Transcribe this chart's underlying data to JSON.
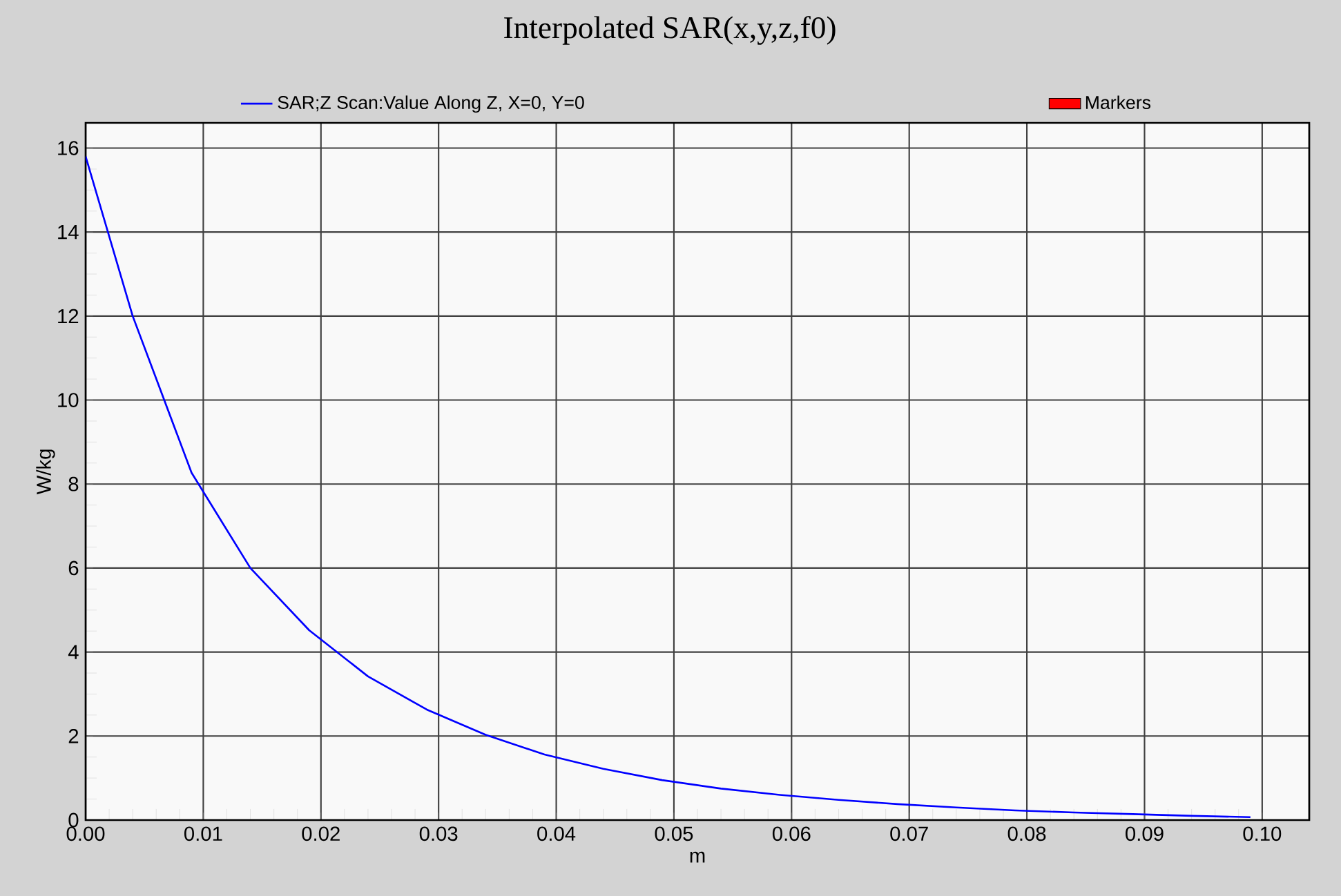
{
  "chart_data": {
    "type": "line",
    "title": "Interpolated SAR(x,y,z,f0)",
    "xlabel": "m",
    "ylabel": "W/kg",
    "xlim": [
      0,
      0.104
    ],
    "ylim": [
      0,
      16.6
    ],
    "xticks": [
      {
        "value": 0,
        "label": "0.00"
      },
      {
        "value": 0.01,
        "label": "0.01"
      },
      {
        "value": 0.02,
        "label": "0.02"
      },
      {
        "value": 0.03,
        "label": "0.03"
      },
      {
        "value": 0.04,
        "label": "0.04"
      },
      {
        "value": 0.05,
        "label": "0.05"
      },
      {
        "value": 0.06,
        "label": "0.06"
      },
      {
        "value": 0.07,
        "label": "0.07"
      },
      {
        "value": 0.08,
        "label": "0.08"
      },
      {
        "value": 0.09,
        "label": "0.09"
      },
      {
        "value": 0.1,
        "label": "0.10"
      }
    ],
    "yticks": [
      0,
      2,
      4,
      6,
      8,
      10,
      12,
      14,
      16
    ],
    "grid": true,
    "legend": "top",
    "marker": "none",
    "line_style": "solid",
    "series": [
      {
        "name": "SAR;Z Scan:Value Along Z, X=0, Y=0",
        "color": "#0000ff",
        "x": [
          0,
          0.004,
          0.009,
          0.014,
          0.019,
          0.024,
          0.029,
          0.034,
          0.039,
          0.044,
          0.049,
          0.054,
          0.059,
          0.064,
          0.069,
          0.074,
          0.079,
          0.084,
          0.089,
          0.094,
          0.099
        ],
        "values": [
          15.8,
          12.0,
          8.27,
          6.0,
          4.52,
          3.42,
          2.63,
          2.03,
          1.56,
          1.22,
          0.95,
          0.75,
          0.6,
          0.48,
          0.38,
          0.3,
          0.23,
          0.18,
          0.14,
          0.1,
          0.07
        ]
      },
      {
        "name": "Markers",
        "color": "#ff0000"
      }
    ]
  }
}
